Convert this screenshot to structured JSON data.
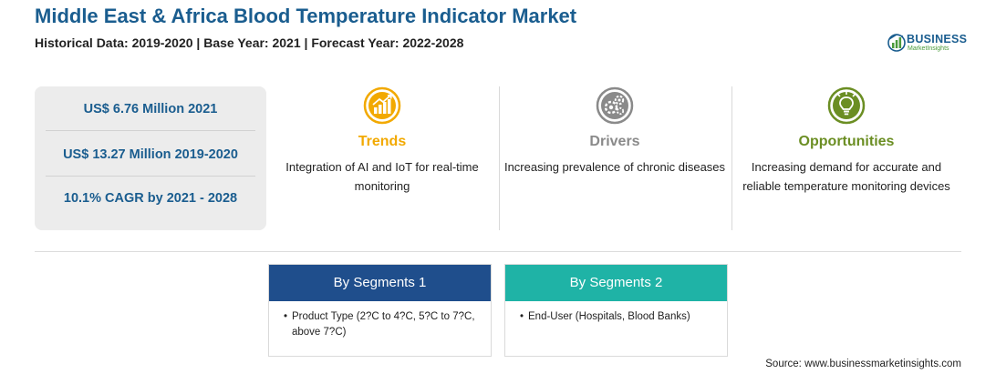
{
  "header": {
    "title": "Middle East & Africa Blood Temperature Indicator Market",
    "subtitle": "Historical Data: 2019-2020 | Base Year: 2021 | Forecast Year: 2022-2028"
  },
  "logo": {
    "brand": "BUSINESS",
    "tagline": "MarketInsights",
    "brand_color": "#1a5d8f",
    "accent_color": "#4a9a3a"
  },
  "stats": [
    {
      "text": "US$ 6.76 Million 2021"
    },
    {
      "text": "US$ 13.27 Million 2019-2020"
    },
    {
      "text": "10.1% CAGR by 2021 - 2028"
    }
  ],
  "columns": {
    "trends": {
      "heading": "Trends",
      "text": "Integration of AI and IoT for real-time monitoring",
      "color": "#f2a900",
      "icon": "trend-chart-icon"
    },
    "drivers": {
      "heading": "Drivers",
      "text": "Increasing prevalence of chronic diseases",
      "color": "#8a8a8a",
      "icon": "gears-icon"
    },
    "opportunities": {
      "heading": "Opportunities",
      "text": "Increasing demand for accurate and reliable temperature monitoring devices",
      "color": "#6b8e23",
      "icon": "lightbulb-icon"
    }
  },
  "segments": [
    {
      "heading": "By Segments 1",
      "color": "#1f4e8c",
      "items": [
        "Product Type (2?C to 4?C, 5?C to 7?C, above 7?C)"
      ]
    },
    {
      "heading": "By Segments 2",
      "color": "#1fb3a6",
      "items": [
        "End-User (Hospitals, Blood Banks)"
      ]
    }
  ],
  "source": "Source: www.businessmarketinsights.com"
}
